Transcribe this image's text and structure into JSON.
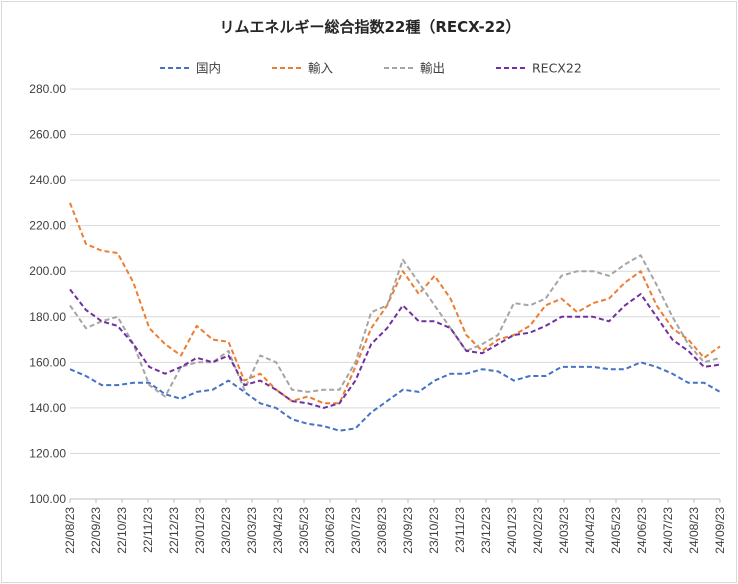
{
  "chart_data": {
    "type": "line",
    "title": "リムエネルギー総合指数22種（RECX-22）",
    "xlabel": "",
    "ylabel": "",
    "ylim": [
      100,
      280
    ],
    "y_ticks": [
      "100.00",
      "120.00",
      "140.00",
      "160.00",
      "180.00",
      "200.00",
      "220.00",
      "240.00",
      "260.00",
      "280.00"
    ],
    "x_ticks": [
      "22/08/23",
      "22/09/23",
      "22/10/23",
      "22/11/23",
      "22/12/23",
      "23/01/23",
      "23/02/23",
      "23/03/23",
      "23/04/23",
      "23/05/23",
      "23/06/23",
      "23/07/23",
      "23/08/23",
      "23/09/23",
      "23/10/23",
      "23/11/23",
      "23/12/23",
      "24/01/23",
      "24/02/23",
      "24/03/23",
      "24/04/23",
      "24/05/23",
      "24/06/23",
      "24/07/23",
      "24/08/23",
      "24/09/23"
    ],
    "grid": "horizontal",
    "legend_position": "top",
    "line_style": "dashed",
    "series": [
      {
        "name": "国内",
        "color": "#4472c4",
        "values": [
          157,
          154,
          150,
          150,
          151,
          151,
          146,
          144,
          147,
          148,
          152,
          147,
          142,
          140,
          135,
          133,
          132,
          130,
          131,
          138,
          143,
          148,
          147,
          152,
          155,
          155,
          157,
          156,
          152,
          154,
          154,
          158,
          158,
          158,
          157,
          157,
          160,
          158,
          155,
          151,
          151,
          147
        ]
      },
      {
        "name": "輸入",
        "color": "#ed7d31",
        "values": [
          230,
          212,
          209,
          208,
          195,
          175,
          168,
          163,
          176,
          170,
          169,
          152,
          155,
          148,
          143,
          145,
          142,
          142,
          158,
          175,
          185,
          200,
          190,
          198,
          188,
          172,
          165,
          170,
          172,
          176,
          185,
          188,
          182,
          186,
          188,
          195,
          200,
          185,
          175,
          170,
          162,
          167
        ]
      },
      {
        "name": "輸出",
        "color": "#a5a5a5",
        "values": [
          185,
          175,
          178,
          180,
          168,
          150,
          145,
          158,
          160,
          160,
          165,
          148,
          163,
          160,
          148,
          147,
          148,
          148,
          160,
          182,
          185,
          205,
          195,
          185,
          175,
          165,
          168,
          172,
          186,
          185,
          188,
          198,
          200,
          200,
          198,
          203,
          207,
          194,
          180,
          168,
          160,
          162
        ]
      },
      {
        "name": "RECX22",
        "color": "#7030a0",
        "values": [
          192,
          183,
          178,
          176,
          168,
          158,
          155,
          158,
          162,
          160,
          163,
          150,
          152,
          148,
          143,
          142,
          140,
          142,
          152,
          168,
          175,
          185,
          178,
          178,
          175,
          165,
          164,
          168,
          172,
          173,
          176,
          180,
          180,
          180,
          178,
          185,
          190,
          180,
          170,
          165,
          158,
          159
        ]
      }
    ]
  }
}
